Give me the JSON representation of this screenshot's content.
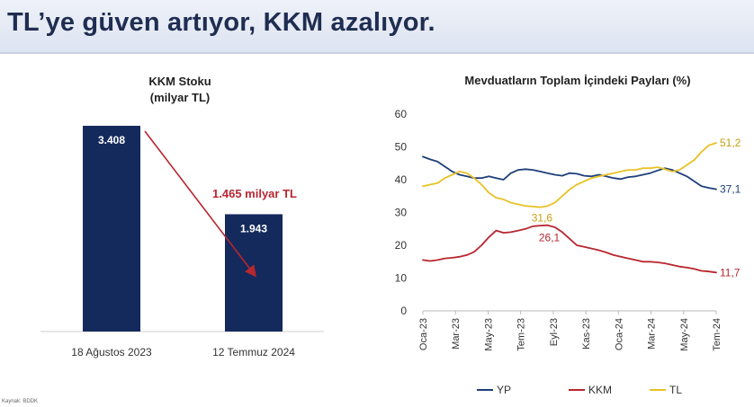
{
  "header": {
    "title": "TL’ye güven artıyor, KKM azalıyor."
  },
  "footer": {
    "source": "Kaynak: BDDK"
  },
  "colors": {
    "navy": "#142a5c",
    "yp": "#1d3f7a",
    "kkm": "#b8262f",
    "tl": "#e9c127",
    "arrow": "#b8262f"
  },
  "chart_data": [
    {
      "type": "bar",
      "title": "KKM Stoku",
      "subtitle": "(milyar TL)",
      "categories": [
        "18 Ağustos 2023",
        "12 Temmuz 2024"
      ],
      "values": [
        3408,
        1943
      ],
      "value_labels": [
        "3.408",
        "1.943"
      ],
      "annotation": "1.465 milyar TL",
      "ylim": [
        0,
        3600
      ]
    },
    {
      "type": "line",
      "title": "Mevduatların Toplam İçindeki Payları (%)",
      "ylim": [
        0,
        60
      ],
      "yticks": [
        "0",
        "10",
        "20",
        "30",
        "40",
        "50",
        "60"
      ],
      "x_ticks": [
        "Oca-23",
        "Mar-23",
        "May-23",
        "Tem-23",
        "Eyl-23",
        "Kas-23",
        "Oca-24",
        "Mar-24",
        "May-24",
        "Tem-24"
      ],
      "x_range": [
        0,
        80
      ],
      "series": [
        {
          "name": "YP",
          "color": "#1d3f7a",
          "x": [
            0,
            2,
            4,
            6,
            8,
            10,
            12,
            14,
            16,
            18,
            20,
            22,
            24,
            26,
            28,
            30,
            32,
            34,
            36,
            38,
            40,
            42,
            44,
            46,
            48,
            50,
            52,
            54,
            56,
            58,
            60,
            62,
            64,
            66,
            68,
            70,
            72,
            74,
            76,
            78,
            80
          ],
          "y": [
            47,
            46.2,
            45.5,
            44,
            42.5,
            41.5,
            41,
            40.5,
            40.5,
            41,
            40.5,
            40,
            42,
            43,
            43.2,
            43,
            42.5,
            42,
            41.5,
            41.2,
            42,
            41.8,
            41.2,
            41,
            41.5,
            41,
            40.5,
            40.2,
            40.8,
            41,
            41.5,
            42,
            42.8,
            43.5,
            43,
            42,
            41,
            39.5,
            38,
            37.5,
            37.1
          ]
        },
        {
          "name": "KKM",
          "color": "#b8262f",
          "x": [
            0,
            2,
            4,
            6,
            8,
            10,
            12,
            14,
            16,
            18,
            20,
            22,
            24,
            26,
            28,
            30,
            32,
            34,
            36,
            38,
            40,
            42,
            44,
            46,
            48,
            50,
            52,
            54,
            56,
            58,
            60,
            62,
            64,
            66,
            68,
            70,
            72,
            74,
            76,
            78,
            80
          ],
          "y": [
            15.5,
            15.2,
            15.5,
            16,
            16.2,
            16.5,
            17,
            18,
            20,
            22.5,
            24.5,
            23.8,
            24,
            24.5,
            25,
            25.8,
            26,
            26.1,
            25.5,
            24,
            22,
            20,
            19.5,
            19,
            18.5,
            17.8,
            17,
            16.5,
            16,
            15.5,
            15,
            15,
            14.8,
            14.5,
            14,
            13.5,
            13.2,
            12.8,
            12.2,
            12,
            11.7
          ]
        },
        {
          "name": "TL",
          "color": "#e9c127",
          "x": [
            0,
            2,
            4,
            6,
            8,
            10,
            12,
            14,
            16,
            18,
            20,
            22,
            24,
            26,
            28,
            30,
            32,
            34,
            36,
            38,
            40,
            42,
            44,
            46,
            48,
            50,
            52,
            54,
            56,
            58,
            60,
            62,
            64,
            66,
            68,
            70,
            72,
            74,
            76,
            78,
            80
          ],
          "y": [
            38,
            38.5,
            39,
            40.5,
            41.5,
            42.5,
            42,
            40.5,
            38.5,
            36,
            34.5,
            34,
            33,
            32.5,
            32,
            31.8,
            31.6,
            32,
            33,
            35,
            37,
            38.5,
            39.5,
            40.5,
            41,
            41.5,
            42,
            42.5,
            43,
            43,
            43.5,
            43.5,
            43.8,
            43.2,
            42.5,
            43,
            44.5,
            46,
            48.5,
            50.5,
            51.2
          ]
        }
      ],
      "end_labels": {
        "YP": "37,1",
        "KKM": "11,7",
        "TL": "51,2"
      },
      "point_labels": [
        {
          "series": "TL",
          "x": 32,
          "y": 31.6,
          "text": "31,6"
        },
        {
          "series": "KKM",
          "x": 34,
          "y": 26.1,
          "text": "26,1"
        }
      ],
      "legend_placement": "bottom"
    }
  ]
}
